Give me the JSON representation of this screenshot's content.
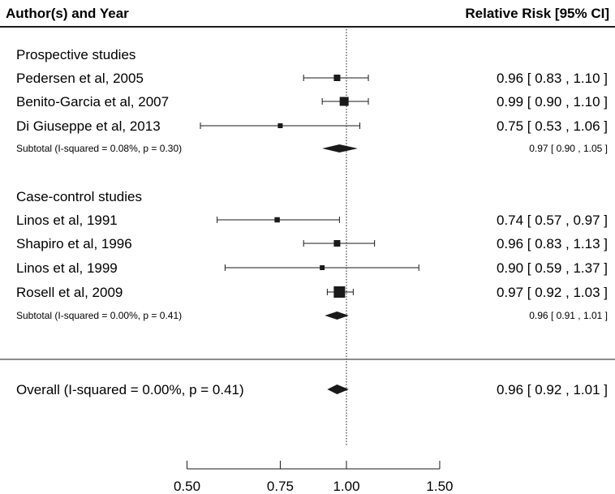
{
  "chart_data": {
    "type": "forest",
    "header": {
      "left": "Author(s) and Year",
      "right": "Relative Risk [95% CI]"
    },
    "reference_line": 1.0,
    "xlim": [
      0.5,
      1.5
    ],
    "xticks": [
      "0.50",
      "0.75",
      "1.00",
      "1.50"
    ],
    "xtick_values": [
      0.5,
      0.75,
      1.0,
      1.5
    ],
    "groups": [
      {
        "title": "Prospective studies",
        "studies": [
          {
            "label": "Pedersen et al, 2005",
            "rr": 0.96,
            "lo": 0.83,
            "hi": 1.1,
            "weight": 0.8,
            "ci_text": "0.96 [ 0.83 , 1.10 ]"
          },
          {
            "label": "Benito-Garcia et al, 2007",
            "rr": 0.99,
            "lo": 0.9,
            "hi": 1.1,
            "weight": 1.4,
            "ci_text": "0.99 [ 0.90 , 1.10 ]"
          },
          {
            "label": "Di Giuseppe et al, 2013",
            "rr": 0.75,
            "lo": 0.53,
            "hi": 1.06,
            "weight": 0.4,
            "ci_text": "0.75 [ 0.53 , 1.06 ]"
          }
        ],
        "subtotal": {
          "label": "Subtotal (I-squared = 0.08%, p = 0.30)",
          "rr": 0.97,
          "lo": 0.9,
          "hi": 1.05,
          "ci_text": "0.97 [ 0.90 , 1.05 ]"
        }
      },
      {
        "title": "Case-control studies",
        "studies": [
          {
            "label": "Linos et al, 1991",
            "rr": 0.74,
            "lo": 0.57,
            "hi": 0.97,
            "weight": 0.5,
            "ci_text": "0.74 [ 0.57 , 0.97 ]"
          },
          {
            "label": "Shapiro et al, 1996",
            "rr": 0.96,
            "lo": 0.83,
            "hi": 1.13,
            "weight": 0.8,
            "ci_text": "0.96 [ 0.83 , 1.13 ]"
          },
          {
            "label": "Linos et al, 1999",
            "rr": 0.9,
            "lo": 0.59,
            "hi": 1.37,
            "weight": 0.4,
            "ci_text": "0.90 [ 0.59 , 1.37 ]"
          },
          {
            "label": "Rosell et al, 2009",
            "rr": 0.97,
            "lo": 0.92,
            "hi": 1.03,
            "weight": 2.0,
            "ci_text": "0.97 [ 0.92 , 1.03 ]"
          }
        ],
        "subtotal": {
          "label": "Subtotal (I-squared = 0.00%, p = 0.41)",
          "rr": 0.96,
          "lo": 0.91,
          "hi": 1.01,
          "ci_text": "0.96 [ 0.91 , 1.01 ]"
        }
      }
    ],
    "overall": {
      "label": "Overall (I-squared = 0.00%, p = 0.41)",
      "rr": 0.96,
      "lo": 0.92,
      "hi": 1.01,
      "ci_text": "0.96 [ 0.92 , 1.01 ]"
    }
  }
}
